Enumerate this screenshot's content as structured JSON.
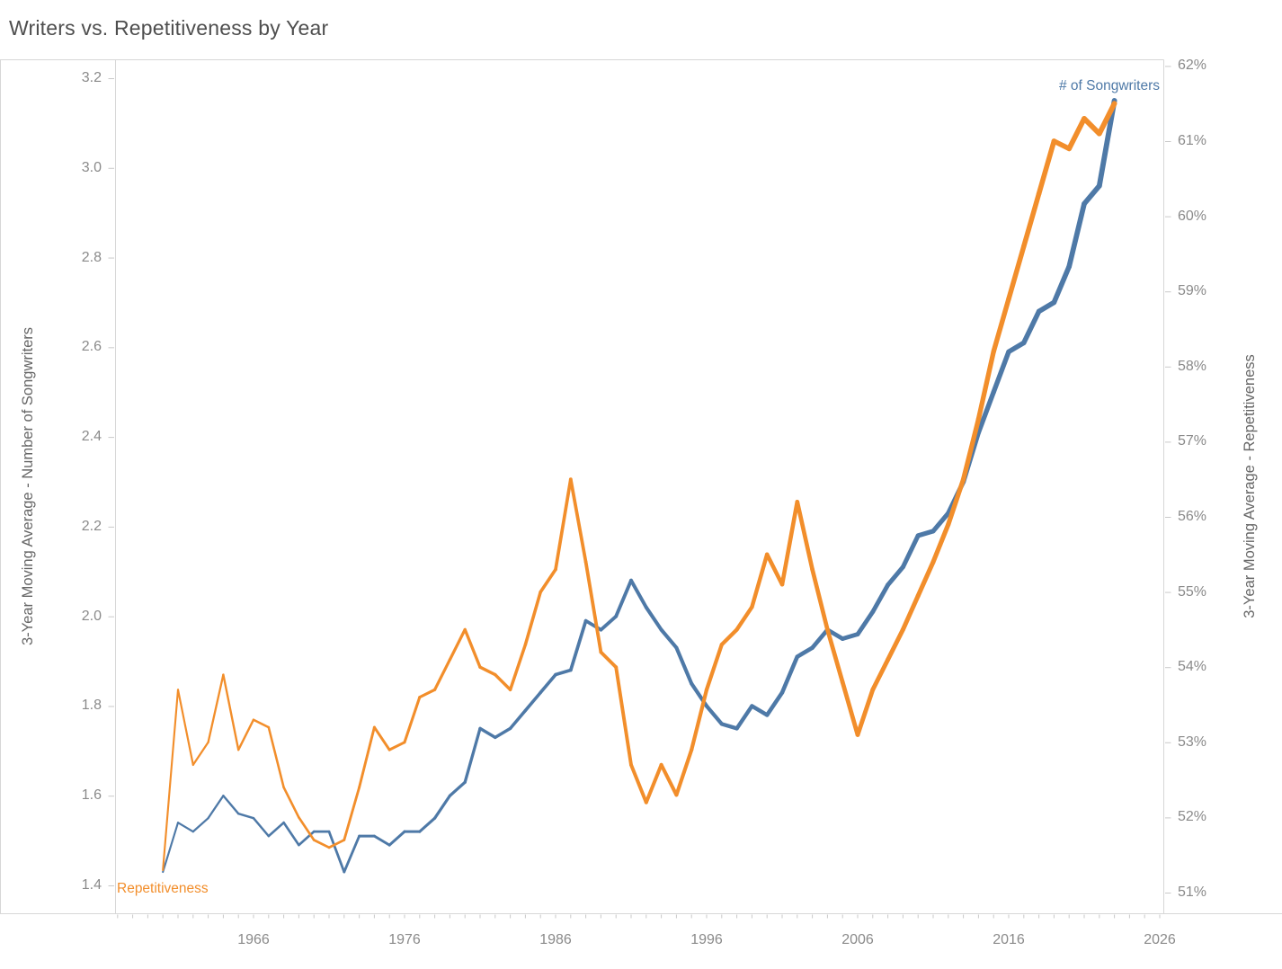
{
  "title": "Writers vs. Repetitiveness by Year",
  "colors": {
    "songwriters_blue": "#4e79a7",
    "repetitiveness_orange": "#f28e2b",
    "axis_border": "#d7d7d7",
    "tick_mark": "#c9c9c9",
    "tick_text": "#8a8a8a",
    "title_text": "#4e4e4e",
    "axis_title_text": "#666666"
  },
  "chart_data": {
    "type": "line",
    "title": "Writers vs. Repetitiveness by Year",
    "x": [
      1960,
      1961,
      1962,
      1963,
      1964,
      1965,
      1966,
      1967,
      1968,
      1969,
      1970,
      1971,
      1972,
      1973,
      1974,
      1975,
      1976,
      1977,
      1978,
      1979,
      1980,
      1981,
      1982,
      1983,
      1984,
      1985,
      1986,
      1987,
      1988,
      1989,
      1990,
      1991,
      1992,
      1993,
      1994,
      1995,
      1996,
      1997,
      1998,
      1999,
      2000,
      2001,
      2002,
      2003,
      2004,
      2005,
      2006,
      2007,
      2008,
      2009,
      2010,
      2011,
      2012,
      2013,
      2014,
      2015,
      2016,
      2017,
      2018,
      2019,
      2020,
      2021,
      2022,
      2023
    ],
    "series": [
      {
        "name": "# of Songwriters",
        "axis": "left",
        "color": "#4e79a7",
        "values": [
          1.43,
          1.54,
          1.52,
          1.55,
          1.6,
          1.56,
          1.55,
          1.51,
          1.54,
          1.49,
          1.52,
          1.52,
          1.43,
          1.51,
          1.51,
          1.49,
          1.52,
          1.52,
          1.55,
          1.6,
          1.63,
          1.75,
          1.73,
          1.75,
          1.79,
          1.83,
          1.87,
          1.88,
          1.99,
          1.97,
          2.0,
          2.08,
          2.02,
          1.97,
          1.93,
          1.85,
          1.8,
          1.76,
          1.75,
          1.8,
          1.78,
          1.83,
          1.91,
          1.93,
          1.97,
          1.95,
          1.96,
          2.01,
          2.07,
          2.11,
          2.18,
          2.19,
          2.23,
          2.3,
          2.41,
          2.5,
          2.59,
          2.61,
          2.68,
          2.7,
          2.78,
          2.92,
          2.96,
          3.15
        ]
      },
      {
        "name": "Repetitiveness",
        "axis": "right",
        "color": "#f28e2b",
        "values": [
          51.3,
          53.7,
          52.7,
          53.0,
          53.9,
          52.9,
          53.3,
          53.2,
          52.4,
          52.0,
          51.7,
          51.6,
          51.7,
          52.4,
          53.2,
          52.9,
          53.0,
          53.6,
          53.7,
          54.1,
          54.5,
          54.0,
          53.9,
          53.7,
          54.3,
          55.0,
          55.3,
          56.5,
          55.4,
          54.2,
          54.0,
          52.7,
          52.2,
          52.7,
          52.3,
          52.9,
          53.7,
          54.3,
          54.5,
          54.8,
          55.5,
          55.1,
          56.2,
          55.3,
          54.5,
          53.8,
          53.1,
          53.7,
          54.1,
          54.5,
          54.95,
          55.4,
          55.9,
          56.5,
          57.3,
          58.2,
          58.9,
          59.6,
          60.3,
          61.0,
          60.9,
          61.3,
          61.1,
          61.5
        ]
      }
    ],
    "left_axis": {
      "title": "3-Year Moving Average - Number of Songwriters",
      "tick_labels": [
        "3.2",
        "3.0",
        "2.8",
        "2.6",
        "2.4",
        "2.2",
        "2.0",
        "1.8",
        "1.6",
        "1.4"
      ],
      "ylim": [
        1.4,
        3.2
      ]
    },
    "right_axis": {
      "title": "3-Year Moving Average - Repetitiveness",
      "tick_labels": [
        "62%",
        "61%",
        "60%",
        "59%",
        "58%",
        "57%",
        "56%",
        "55%",
        "54%",
        "53%",
        "52%",
        "51%"
      ],
      "ylim": [
        51,
        62
      ]
    },
    "x_axis": {
      "tick_labels": [
        "1966",
        "1976",
        "1986",
        "1996",
        "2006",
        "2016",
        "2026"
      ],
      "minor_ticks_every_year": true
    },
    "grid": false,
    "legend_position": "inline-annotations",
    "annotations": [
      {
        "text": "# of Songwriters",
        "color": "#4e79a7",
        "anchor": "top-right-of-line-end"
      },
      {
        "text": "Repetitiveness",
        "color": "#f28e2b",
        "anchor": "bottom-left-of-line-start"
      }
    ]
  }
}
